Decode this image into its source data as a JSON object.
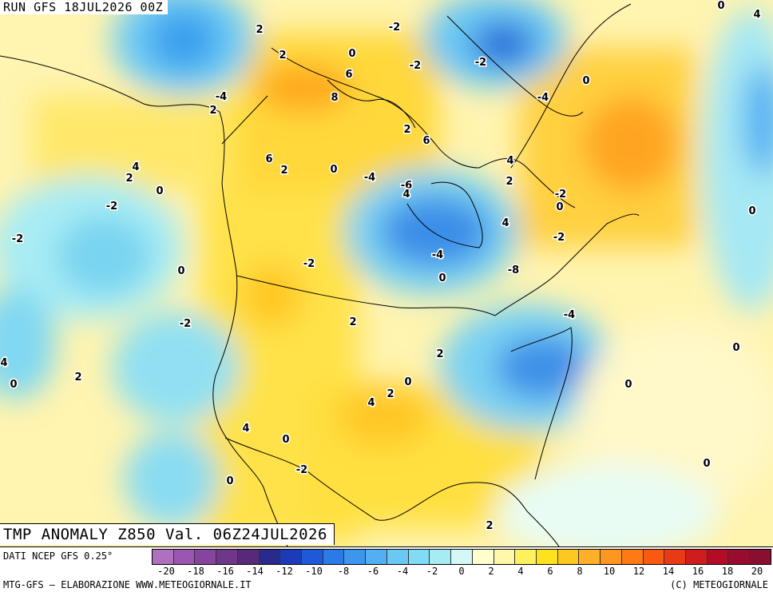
{
  "header": {
    "run_label": "RUN GFS 18JUL2026 00Z"
  },
  "map": {
    "title": "TMP ANOMALY Z850 Val. 06Z24JUL2026",
    "contour_labels": [
      "2",
      "0",
      "2",
      "0",
      "4",
      "-4",
      "2",
      "6",
      "8",
      "-2",
      "-2",
      "-4",
      "-2",
      "4",
      "2",
      "0",
      "6",
      "2",
      "0",
      "-2",
      "-4",
      "-6",
      "4",
      "0",
      "2",
      "6",
      "4",
      "-2",
      "0",
      "0",
      "-2",
      "4",
      "-2",
      "0",
      "-8",
      "-4",
      "0",
      "-2",
      "2",
      "2",
      "-4",
      "0",
      "4",
      "2",
      "0",
      "2",
      "0",
      "-2",
      "0",
      "4",
      "2",
      "4",
      "0",
      "0",
      "0",
      "2",
      "-2"
    ]
  },
  "legend": {
    "source": "DATI NCEP GFS 0.25°",
    "colors": [
      "#b070c0",
      "#9a56b0",
      "#86449e",
      "#70368a",
      "#58287a",
      "#2a2a8c",
      "#1a3cb8",
      "#1e5ad8",
      "#2c7ae6",
      "#3c96ee",
      "#52b0f2",
      "#6ac8f4",
      "#80dcf4",
      "#a6ecf4",
      "#d2f8f8",
      "#ffffd0",
      "#fff8a8",
      "#fff05e",
      "#ffe21e",
      "#ffc820",
      "#ffb028",
      "#ff9620",
      "#ff7a14",
      "#f85a10",
      "#e83a14",
      "#d01c1c",
      "#b40c26",
      "#9a0c2e",
      "#88102e"
    ],
    "ticks": [
      "-20",
      "-18",
      "-16",
      "-14",
      "-12",
      "-10",
      "-8",
      "-6",
      "-4",
      "-2",
      "0",
      "2",
      "4",
      "6",
      "8",
      "10",
      "12",
      "14",
      "16",
      "18",
      "20"
    ]
  },
  "footer": {
    "credits_left": "MTG-GFS — ELABORAZIONE WWW.METEOGIORNALE.IT",
    "credits_right": "(C) METEOGIORNALE"
  }
}
